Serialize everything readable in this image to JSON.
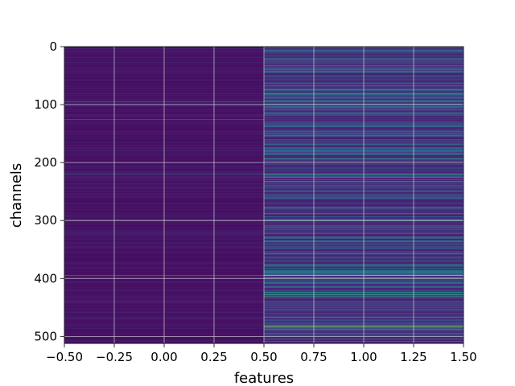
{
  "chart_data": {
    "type": "heatmap",
    "title": "",
    "xlabel": "features",
    "ylabel": "channels",
    "xlim": [
      -0.5,
      1.5
    ],
    "ylim": [
      512,
      0
    ],
    "y_inverted": true,
    "grid": true,
    "colormap": "viridis",
    "columns": 2,
    "rows": 512,
    "x_ticks": [
      -0.5,
      -0.25,
      0.0,
      0.25,
      0.5,
      0.75,
      1.0,
      1.25,
      1.5
    ],
    "x_tick_labels": [
      "−0.50",
      "−0.25",
      "0.00",
      "0.25",
      "0.50",
      "0.75",
      "1.00",
      "1.25",
      "1.50"
    ],
    "y_ticks": [
      0,
      100,
      200,
      300,
      400,
      500
    ],
    "y_tick_labels": [
      "0",
      "100",
      "200",
      "300",
      "400",
      "500"
    ],
    "column_profiles": [
      {
        "feature": 0,
        "baseline": 0.05,
        "variation": 0.08
      },
      {
        "feature": 1,
        "baseline": 0.12,
        "variation": 0.35
      }
    ],
    "highlight_rows_feature_1": [
      {
        "channel": 1,
        "value": 0.45
      },
      {
        "channel": 8,
        "value": 0.55
      },
      {
        "channel": 95,
        "value": 0.5
      },
      {
        "channel": 193,
        "value": 0.6
      },
      {
        "channel": 219,
        "value": 0.65
      },
      {
        "channel": 225,
        "value": 0.55
      },
      {
        "channel": 232,
        "value": 0.5
      },
      {
        "channel": 278,
        "value": 0.5
      },
      {
        "channel": 312,
        "value": 0.5
      },
      {
        "channel": 363,
        "value": 0.55
      },
      {
        "channel": 376,
        "value": 0.6
      },
      {
        "channel": 394,
        "value": 0.98
      },
      {
        "channel": 398,
        "value": 0.7
      },
      {
        "channel": 428,
        "value": 0.7
      },
      {
        "channel": 431,
        "value": 0.6
      },
      {
        "channel": 480,
        "value": 0.6
      },
      {
        "channel": 483,
        "value": 0.85
      },
      {
        "channel": 487,
        "value": 0.55
      }
    ],
    "highlight_rows_feature_0": [
      {
        "channel": 95,
        "value": 0.3
      },
      {
        "channel": 125,
        "value": 0.3
      },
      {
        "channel": 219,
        "value": 0.35
      },
      {
        "channel": 394,
        "value": 0.45
      }
    ]
  }
}
